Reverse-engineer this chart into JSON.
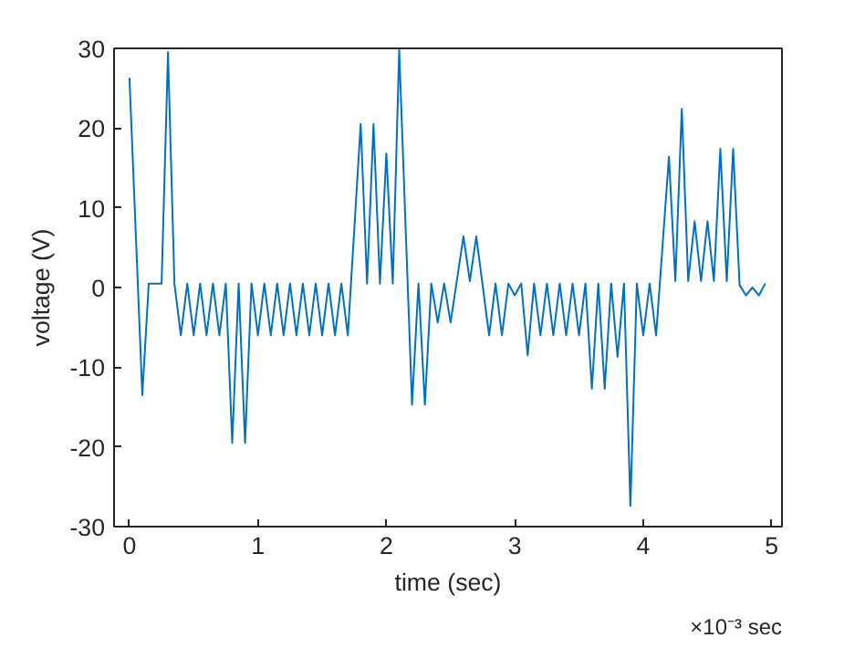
{
  "chart_data": {
    "type": "line",
    "xlabel": "time (sec)",
    "ylabel": "voltage (V)",
    "annotations": [
      "×10⁻³ sec"
    ],
    "xlim": [
      -0.12,
      5.08
    ],
    "ylim": [
      -30,
      30
    ],
    "xticks": [
      0,
      1,
      2,
      3,
      4,
      5
    ],
    "yticks": [
      -30,
      -20,
      -10,
      0,
      10,
      20,
      30
    ],
    "grid": false,
    "marker": "none",
    "line_style": "solid",
    "series": [
      {
        "color": "#0072bd",
        "x": [
          0,
          0.1,
          0.15,
          0.25,
          0.3,
          0.35,
          0.4,
          0.45,
          0.5,
          0.55,
          0.6,
          0.65,
          0.7,
          0.75,
          0.8,
          0.85,
          0.9,
          0.95,
          1.0,
          1.05,
          1.1,
          1.15,
          1.2,
          1.25,
          1.3,
          1.35,
          1.4,
          1.45,
          1.5,
          1.55,
          1.6,
          1.65,
          1.7,
          1.8,
          1.85,
          1.9,
          1.95,
          2.0,
          2.05,
          2.1,
          2.2,
          2.25,
          2.3,
          2.35,
          2.4,
          2.45,
          2.5,
          2.6,
          2.65,
          2.7,
          2.8,
          2.85,
          2.9,
          2.95,
          3.0,
          3.05,
          3.1,
          3.15,
          3.2,
          3.25,
          3.3,
          3.35,
          3.4,
          3.45,
          3.5,
          3.55,
          3.6,
          3.65,
          3.7,
          3.75,
          3.8,
          3.85,
          3.9,
          3.95,
          4.0,
          4.05,
          4.1,
          4.2,
          4.25,
          4.3,
          4.35,
          4.4,
          4.45,
          4.5,
          4.55,
          4.6,
          4.65,
          4.7,
          4.75,
          4.8,
          4.85,
          4.9,
          4.95
        ],
        "values": [
          26.3,
          -13.5,
          0.5,
          0.5,
          29.5,
          0.5,
          -6,
          0.5,
          -6,
          0.5,
          -6,
          0.5,
          -6,
          0.5,
          -19.5,
          0.5,
          -19.5,
          0.5,
          -6,
          0.5,
          -6,
          0.5,
          -6,
          0.5,
          -6,
          0.5,
          -6,
          0.5,
          -6,
          0.5,
          -6,
          0.5,
          -6,
          20.5,
          0.5,
          20.5,
          0.5,
          16.8,
          0.5,
          29.8,
          -14.7,
          0.5,
          -14.7,
          0.5,
          -4.4,
          0.5,
          -4.4,
          6.4,
          0.8,
          6.4,
          -6,
          0.5,
          -6,
          0.5,
          -1,
          0.5,
          -8.5,
          0.5,
          -6,
          0.5,
          -6,
          0.5,
          -6,
          0.5,
          -6,
          0.5,
          -12.7,
          0.5,
          -12.7,
          0.5,
          -8.7,
          0.5,
          -27.4,
          0.5,
          -6,
          0.5,
          -6,
          16.4,
          0.8,
          22.4,
          0.8,
          8.3,
          0.8,
          8.3,
          0.8,
          17.4,
          0.8,
          17.4,
          0.3,
          -1,
          0,
          -1,
          0.5
        ]
      }
    ]
  }
}
